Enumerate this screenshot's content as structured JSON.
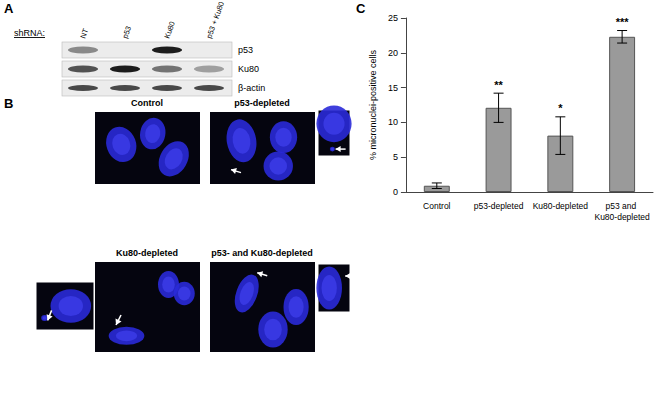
{
  "panel_labels": [
    "A",
    "B",
    "C"
  ],
  "blot": {
    "shRNA_label": "shRNA:",
    "lanes": [
      "NT",
      "p53",
      "Ku80",
      "p53 + Ku80"
    ],
    "rows": [
      "p53",
      "Ku80",
      "β-actin"
    ]
  },
  "images": [
    "Control",
    "p53-depleted",
    "Ku80-depleted",
    "p53- and Ku80-depleted"
  ],
  "chart_data": {
    "type": "bar",
    "categories": [
      "Control",
      "p53-depleted",
      "Ku80-depleted",
      "p53 and Ku80-depleted"
    ],
    "values": [
      0.9,
      12.1,
      8.1,
      22.3
    ],
    "errors": [
      0.4,
      2.1,
      2.7,
      0.9
    ],
    "annotations": [
      null,
      "**",
      "*",
      "***"
    ],
    "y_label": "% micronuclei-positive cells",
    "color": "#9a9a9a",
    "ylim": [
      0,
      25
    ],
    "yticks": [
      0,
      5,
      10,
      15,
      20,
      25
    ],
    "grid": false
  }
}
